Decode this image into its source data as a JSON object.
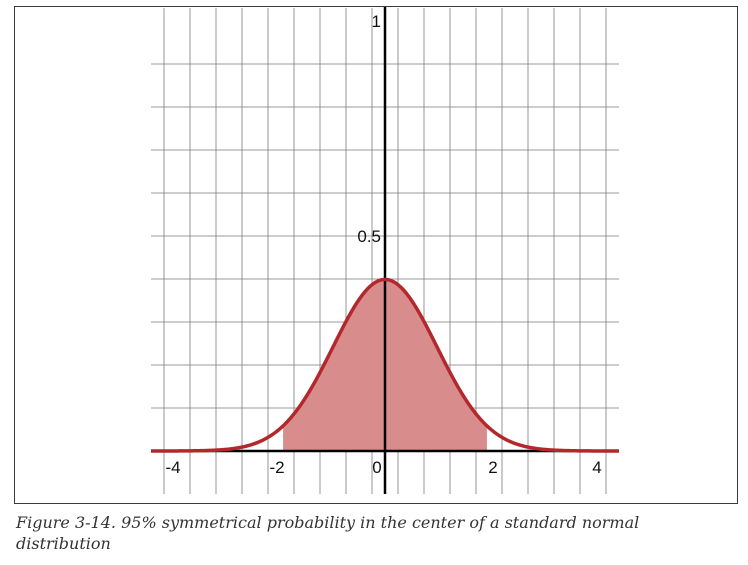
{
  "chart_data": {
    "type": "area",
    "title": "",
    "xlabel": "",
    "ylabel": "",
    "xlim": [
      -4.5,
      4.5
    ],
    "ylim": [
      0,
      1
    ],
    "x_ticks": [
      -4,
      -2,
      0,
      2,
      4
    ],
    "x_tick_labels": [
      "-4",
      "-2",
      "0",
      "2",
      "4"
    ],
    "y_ticks": [
      0.5,
      1
    ],
    "y_tick_labels": [
      "0.5",
      "1"
    ],
    "grid": true,
    "grid_step_x": 0.5,
    "grid_step_y": 0.1,
    "series": [
      {
        "curve": "standard normal pdf",
        "mean": 0,
        "sd": 1,
        "x": [
          -4.5,
          -4,
          -3.5,
          -3,
          -2.5,
          -2,
          -1.5,
          -1,
          -0.5,
          0,
          0.5,
          1,
          1.5,
          2,
          2.5,
          3,
          3.5,
          4,
          4.5
        ],
        "y": [
          0.0,
          0.0001,
          0.0009,
          0.0044,
          0.0175,
          0.054,
          0.1295,
          0.242,
          0.3521,
          0.3989,
          0.3521,
          0.242,
          0.1295,
          0.054,
          0.0175,
          0.0044,
          0.0009,
          0.0001,
          0.0
        ]
      }
    ],
    "shaded_region": {
      "from": -1.96,
      "to": 1.96
    },
    "colors": {
      "curve": "#b3282d",
      "fill": "#d98c8c",
      "grid": "#7a7a7a",
      "axis": "#000000"
    }
  },
  "caption": "Figure 3-14. 95% symmetrical probability in the center of a standard normal distribution"
}
